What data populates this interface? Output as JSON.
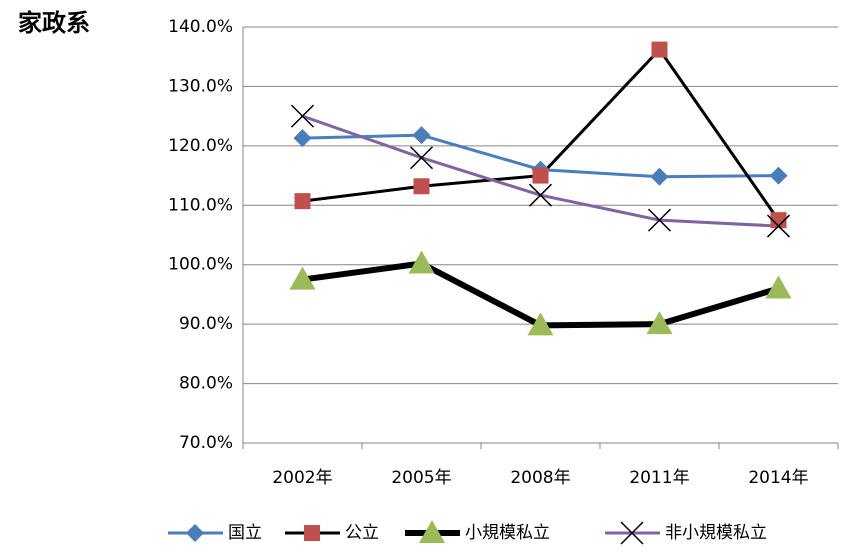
{
  "chart_data": {
    "type": "line",
    "title": "家政系",
    "categories": [
      "2002年",
      "2005年",
      "2008年",
      "2011年",
      "2014年"
    ],
    "series": [
      {
        "name": "国立",
        "color": "#4a7ebb",
        "marker": "diamond",
        "marker_color": "#4a7ebb",
        "values": [
          121.3,
          121.8,
          116.0,
          114.8,
          115.0
        ]
      },
      {
        "name": "公立",
        "color": "#000000",
        "marker": "square",
        "marker_color": "#c0504d",
        "values": [
          110.7,
          113.2,
          115.0,
          136.2,
          107.5
        ]
      },
      {
        "name": "小規模私立",
        "color": "#000000",
        "marker": "triangle",
        "marker_color": "#9bbb59",
        "values": [
          97.5,
          100.2,
          89.8,
          90.0,
          96.0
        ]
      },
      {
        "name": "非小規模私立",
        "color": "#8064a2",
        "marker": "x",
        "marker_color": "#000000",
        "values": [
          125.0,
          118.0,
          111.7,
          107.5,
          106.5
        ]
      }
    ],
    "ylim": [
      70,
      140
    ],
    "yticks": [
      {
        "value": 70,
        "label": "70.0%"
      },
      {
        "value": 80,
        "label": "80.0%"
      },
      {
        "value": 90,
        "label": "90.0%"
      },
      {
        "value": 100,
        "label": "100.0%"
      },
      {
        "value": 110,
        "label": "110.0%"
      },
      {
        "value": 120,
        "label": "120.0%"
      },
      {
        "value": 130,
        "label": "130.0%"
      },
      {
        "value": 140,
        "label": "140.0%"
      }
    ],
    "grid": true,
    "legend": "bottom"
  }
}
